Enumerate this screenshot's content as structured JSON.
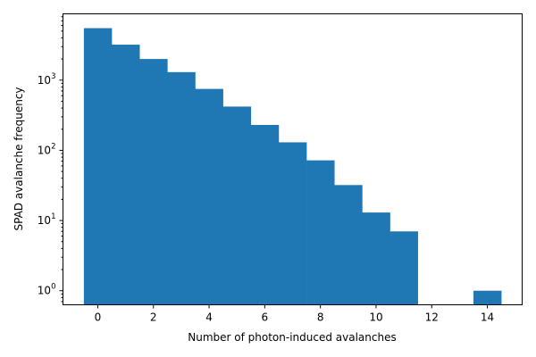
{
  "chart_data": {
    "type": "bar",
    "x": [
      0,
      1,
      2,
      3,
      4,
      5,
      6,
      7,
      8,
      9,
      10,
      11,
      12,
      13,
      14
    ],
    "values": [
      5500,
      3200,
      2000,
      1300,
      750,
      420,
      230,
      130,
      72,
      32,
      13,
      7,
      0,
      0,
      1
    ],
    "bar_width": 1,
    "xlabel": "Number of photon-induced avalanches",
    "ylabel": "SPAD avalanche frequency",
    "xlim": [
      -1.25,
      15.25
    ],
    "ylim": [
      0.63,
      8800
    ],
    "y_scale": "log",
    "x_ticks": [
      0,
      2,
      4,
      6,
      8,
      10,
      12,
      14
    ],
    "y_ticks": [
      {
        "value": 1,
        "base": "10",
        "exp": "0"
      },
      {
        "value": 10,
        "base": "10",
        "exp": "1"
      },
      {
        "value": 100,
        "base": "10",
        "exp": "2"
      },
      {
        "value": 1000,
        "base": "10",
        "exp": "3"
      }
    ],
    "grid": false,
    "bar_color": "#1f77b4"
  }
}
